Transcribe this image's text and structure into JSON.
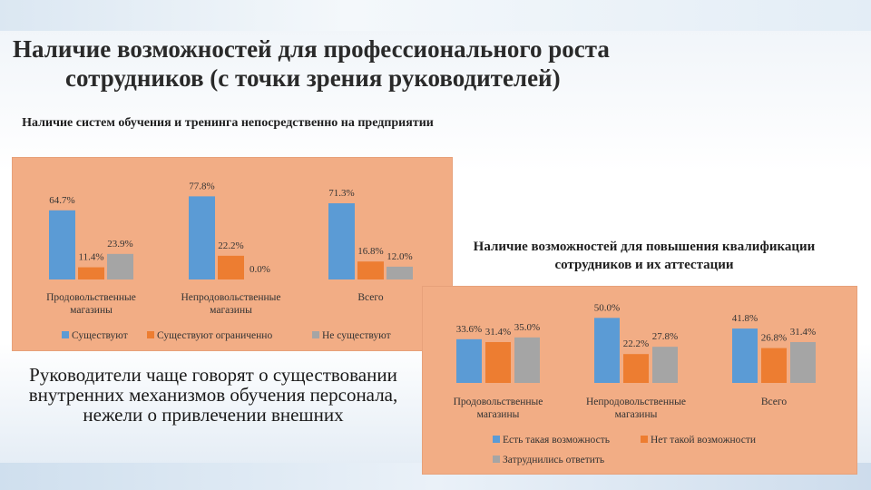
{
  "slide": {
    "title_line1": "Наличие возможностей для профессионального роста",
    "title_line2": "сотрудников (с точки зрения руководителей)",
    "note": "Руководители чаще говорят о существовании внутренних механизмов обучения персонала, нежели о привлечении внешних"
  },
  "chart_data": [
    {
      "type": "bar",
      "title": "Наличие систем обучения и тренинга непосредственно на предприятии",
      "categories": [
        "Продовольственные магазины",
        "Непродовольственные магазины",
        "Всего"
      ],
      "series": [
        {
          "name": "Существуют",
          "values": [
            64.7,
            77.8,
            71.3
          ],
          "labels": [
            "64.7%",
            "77.8%",
            "71.3%"
          ],
          "color": "#5b9bd5"
        },
        {
          "name": "Существуют ограниченно",
          "values": [
            11.4,
            22.2,
            16.8
          ],
          "labels": [
            "11.4%",
            "22.2%",
            "16.8%"
          ],
          "color": "#ed7d31"
        },
        {
          "name": "Не существуют",
          "values": [
            23.9,
            0.0,
            12.0
          ],
          "labels": [
            "23.9%",
            "0.0%",
            "12.0%"
          ],
          "color": "#a5a5a5"
        }
      ],
      "ylim": [
        0,
        90
      ],
      "legend": "bottom",
      "grid": false
    },
    {
      "type": "bar",
      "title": "Наличие возможностей для повышения квалификации сотрудников и их аттестации",
      "categories": [
        "Продовольственные магазины",
        "Непродовольственные магазины",
        "Всего"
      ],
      "series": [
        {
          "name": "Есть такая возможность",
          "values": [
            33.6,
            50.0,
            41.8
          ],
          "labels": [
            "33.6%",
            "50.0%",
            "41.8%"
          ],
          "color": "#5b9bd5"
        },
        {
          "name": "Нет такой возможности",
          "values": [
            31.4,
            22.2,
            26.8
          ],
          "labels": [
            "31.4%",
            "22.2%",
            "26.8%"
          ],
          "color": "#ed7d31"
        },
        {
          "name": "Затруднились ответить",
          "values": [
            35.0,
            27.8,
            31.4
          ],
          "labels": [
            "35.0%",
            "27.8%",
            "31.4%"
          ],
          "color": "#a5a5a5"
        }
      ],
      "ylim": [
        0,
        60
      ],
      "legend": "bottom",
      "grid": false
    }
  ]
}
